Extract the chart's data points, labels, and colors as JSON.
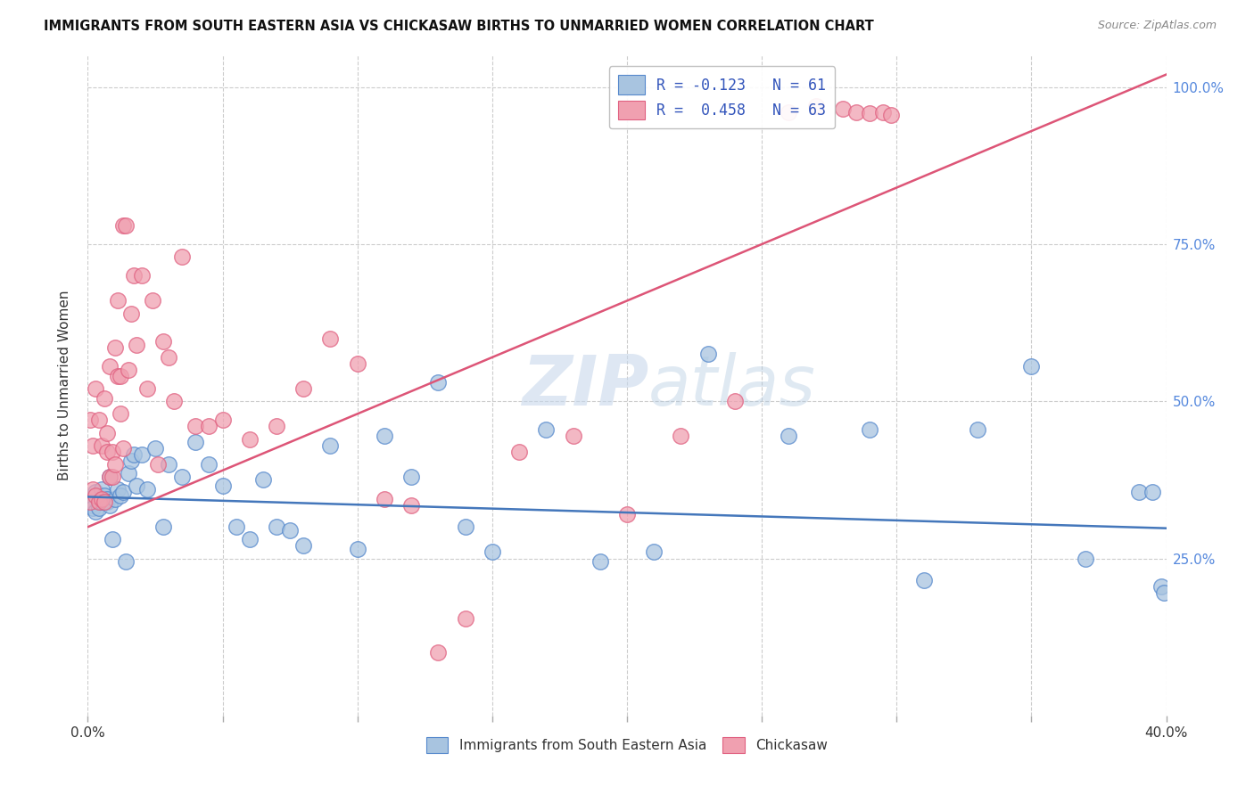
{
  "title": "IMMIGRANTS FROM SOUTH EASTERN ASIA VS CHICKASAW BIRTHS TO UNMARRIED WOMEN CORRELATION CHART",
  "source": "Source: ZipAtlas.com",
  "ylabel": "Births to Unmarried Women",
  "legend_label1": "Immigrants from South Eastern Asia",
  "legend_label2": "Chickasaw",
  "legend_R1": "R = -0.123",
  "legend_N1": "N = 61",
  "legend_R2": "R =  0.458",
  "legend_N2": "N = 63",
  "blue_color": "#A8C4E0",
  "pink_color": "#F0A0B0",
  "blue_edge_color": "#5588CC",
  "pink_edge_color": "#E06080",
  "blue_line_color": "#4477BB",
  "pink_line_color": "#DD5577",
  "watermark_color": "#C8D8EC",
  "blue_scatter_x": [
    0.001,
    0.002,
    0.002,
    0.003,
    0.003,
    0.004,
    0.004,
    0.005,
    0.005,
    0.006,
    0.006,
    0.007,
    0.007,
    0.008,
    0.008,
    0.009,
    0.01,
    0.011,
    0.012,
    0.013,
    0.014,
    0.015,
    0.016,
    0.017,
    0.018,
    0.02,
    0.022,
    0.025,
    0.028,
    0.03,
    0.035,
    0.04,
    0.045,
    0.05,
    0.055,
    0.06,
    0.065,
    0.07,
    0.075,
    0.08,
    0.09,
    0.1,
    0.11,
    0.12,
    0.13,
    0.14,
    0.15,
    0.17,
    0.19,
    0.21,
    0.23,
    0.26,
    0.29,
    0.31,
    0.33,
    0.35,
    0.37,
    0.39,
    0.395,
    0.398,
    0.399
  ],
  "blue_scatter_y": [
    0.335,
    0.34,
    0.33,
    0.355,
    0.325,
    0.34,
    0.33,
    0.34,
    0.36,
    0.35,
    0.34,
    0.345,
    0.34,
    0.335,
    0.38,
    0.28,
    0.345,
    0.36,
    0.35,
    0.355,
    0.245,
    0.385,
    0.405,
    0.415,
    0.365,
    0.415,
    0.36,
    0.425,
    0.3,
    0.4,
    0.38,
    0.435,
    0.4,
    0.365,
    0.3,
    0.28,
    0.375,
    0.3,
    0.295,
    0.27,
    0.43,
    0.265,
    0.445,
    0.38,
    0.53,
    0.3,
    0.26,
    0.455,
    0.245,
    0.26,
    0.575,
    0.445,
    0.455,
    0.215,
    0.455,
    0.555,
    0.25,
    0.355,
    0.355,
    0.205,
    0.195
  ],
  "pink_scatter_x": [
    0.001,
    0.001,
    0.002,
    0.002,
    0.003,
    0.003,
    0.004,
    0.004,
    0.005,
    0.005,
    0.006,
    0.006,
    0.007,
    0.007,
    0.008,
    0.008,
    0.009,
    0.009,
    0.01,
    0.01,
    0.011,
    0.011,
    0.012,
    0.012,
    0.013,
    0.013,
    0.014,
    0.015,
    0.016,
    0.017,
    0.018,
    0.02,
    0.022,
    0.024,
    0.026,
    0.028,
    0.03,
    0.032,
    0.035,
    0.04,
    0.045,
    0.05,
    0.06,
    0.07,
    0.08,
    0.09,
    0.1,
    0.11,
    0.12,
    0.13,
    0.14,
    0.16,
    0.18,
    0.2,
    0.22,
    0.24,
    0.26,
    0.27,
    0.28,
    0.285,
    0.29,
    0.295,
    0.298
  ],
  "pink_scatter_y": [
    0.34,
    0.47,
    0.36,
    0.43,
    0.35,
    0.52,
    0.34,
    0.47,
    0.43,
    0.345,
    0.34,
    0.505,
    0.42,
    0.45,
    0.38,
    0.555,
    0.42,
    0.38,
    0.585,
    0.4,
    0.54,
    0.66,
    0.54,
    0.48,
    0.78,
    0.425,
    0.78,
    0.55,
    0.64,
    0.7,
    0.59,
    0.7,
    0.52,
    0.66,
    0.4,
    0.595,
    0.57,
    0.5,
    0.73,
    0.46,
    0.46,
    0.47,
    0.44,
    0.46,
    0.52,
    0.6,
    0.56,
    0.345,
    0.335,
    0.1,
    0.155,
    0.42,
    0.445,
    0.32,
    0.445,
    0.5,
    0.96,
    0.97,
    0.965,
    0.96,
    0.958,
    0.96,
    0.955
  ],
  "xlim": [
    0.0,
    0.4
  ],
  "ylim": [
    0.0,
    1.05
  ],
  "blue_line_x0": 0.0,
  "blue_line_x1": 0.4,
  "blue_line_y0": 0.348,
  "blue_line_y1": 0.298,
  "pink_line_x0": 0.0,
  "pink_line_x1": 0.4,
  "pink_line_y0": 0.3,
  "pink_line_y1": 1.02
}
